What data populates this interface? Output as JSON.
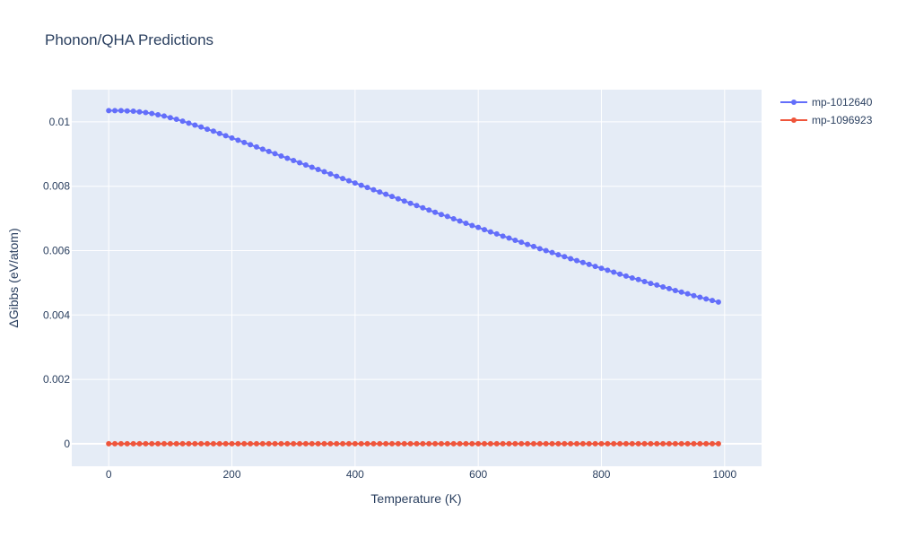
{
  "chart_data": {
    "type": "line",
    "title": "Phonon/QHA Predictions",
    "xlabel": "Temperature (K)",
    "ylabel": "ΔGibbs (eV/atom)",
    "xlim": [
      -60,
      1060
    ],
    "ylim": [
      -0.0007,
      0.011
    ],
    "x_ticks": [
      0,
      200,
      400,
      600,
      800,
      1000
    ],
    "x_tick_labels": [
      "0",
      "200",
      "400",
      "600",
      "800",
      "1000"
    ],
    "y_ticks": [
      0,
      0.002,
      0.004,
      0.006,
      0.008,
      0.01
    ],
    "y_tick_labels": [
      "0",
      "0.002",
      "0.004",
      "0.006",
      "0.008",
      "0.01"
    ],
    "grid": true,
    "legend": "top-right, outside plot",
    "x": [
      0,
      10,
      20,
      30,
      40,
      50,
      60,
      70,
      80,
      90,
      100,
      110,
      120,
      130,
      140,
      150,
      160,
      170,
      180,
      190,
      200,
      210,
      220,
      230,
      240,
      250,
      260,
      270,
      280,
      290,
      300,
      310,
      320,
      330,
      340,
      350,
      360,
      370,
      380,
      390,
      400,
      410,
      420,
      430,
      440,
      450,
      460,
      470,
      480,
      490,
      500,
      510,
      520,
      530,
      540,
      550,
      560,
      570,
      580,
      590,
      600,
      610,
      620,
      630,
      640,
      650,
      660,
      670,
      680,
      690,
      700,
      710,
      720,
      730,
      740,
      750,
      760,
      770,
      780,
      790,
      800,
      810,
      820,
      830,
      840,
      850,
      860,
      870,
      880,
      890,
      900,
      910,
      920,
      930,
      940,
      950,
      960,
      970,
      980,
      990
    ],
    "series": [
      {
        "name": "mp-1012640",
        "color": "#636efa",
        "values": [
          0.01035,
          0.01035,
          0.01035,
          0.01034,
          0.01033,
          0.01031,
          0.01029,
          0.01026,
          0.01022,
          0.01018,
          0.01013,
          0.01008,
          0.01002,
          0.00996,
          0.0099,
          0.00984,
          0.00977,
          0.00971,
          0.00964,
          0.00957,
          0.0095,
          0.00943,
          0.00936,
          0.00929,
          0.00922,
          0.00915,
          0.00908,
          0.00901,
          0.00894,
          0.00887,
          0.0088,
          0.00873,
          0.00866,
          0.00859,
          0.00852,
          0.00845,
          0.00838,
          0.00831,
          0.00824,
          0.00817,
          0.0081,
          0.00803,
          0.00796,
          0.00789,
          0.00782,
          0.00775,
          0.00768,
          0.00761,
          0.00754,
          0.00747,
          0.0074,
          0.00733,
          0.00726,
          0.00719,
          0.00712,
          0.00706,
          0.00699,
          0.00692,
          0.00685,
          0.00678,
          0.00672,
          0.00665,
          0.00658,
          0.00652,
          0.00645,
          0.00639,
          0.00632,
          0.00626,
          0.00619,
          0.00613,
          0.00606,
          0.006,
          0.00594,
          0.00587,
          0.00581,
          0.00575,
          0.00569,
          0.00563,
          0.00557,
          0.00551,
          0.00545,
          0.00539,
          0.00533,
          0.00527,
          0.00521,
          0.00515,
          0.0051,
          0.00504,
          0.00498,
          0.00493,
          0.00487,
          0.00482,
          0.00476,
          0.00471,
          0.00466,
          0.0046,
          0.00455,
          0.0045,
          0.00445,
          0.0044
        ]
      },
      {
        "name": "mp-1096923",
        "color": "#ef553b",
        "values": [
          0,
          0,
          0,
          0,
          0,
          0,
          0,
          0,
          0,
          0,
          0,
          0,
          0,
          0,
          0,
          0,
          0,
          0,
          0,
          0,
          0,
          0,
          0,
          0,
          0,
          0,
          0,
          0,
          0,
          0,
          0,
          0,
          0,
          0,
          0,
          0,
          0,
          0,
          0,
          0,
          0,
          0,
          0,
          0,
          0,
          0,
          0,
          0,
          0,
          0,
          0,
          0,
          0,
          0,
          0,
          0,
          0,
          0,
          0,
          0,
          0,
          0,
          0,
          0,
          0,
          0,
          0,
          0,
          0,
          0,
          0,
          0,
          0,
          0,
          0,
          0,
          0,
          0,
          0,
          0,
          0,
          0,
          0,
          0,
          0,
          0,
          0,
          0,
          0,
          0,
          0,
          0,
          0,
          0,
          0,
          0,
          0,
          0,
          0,
          0
        ]
      }
    ]
  }
}
